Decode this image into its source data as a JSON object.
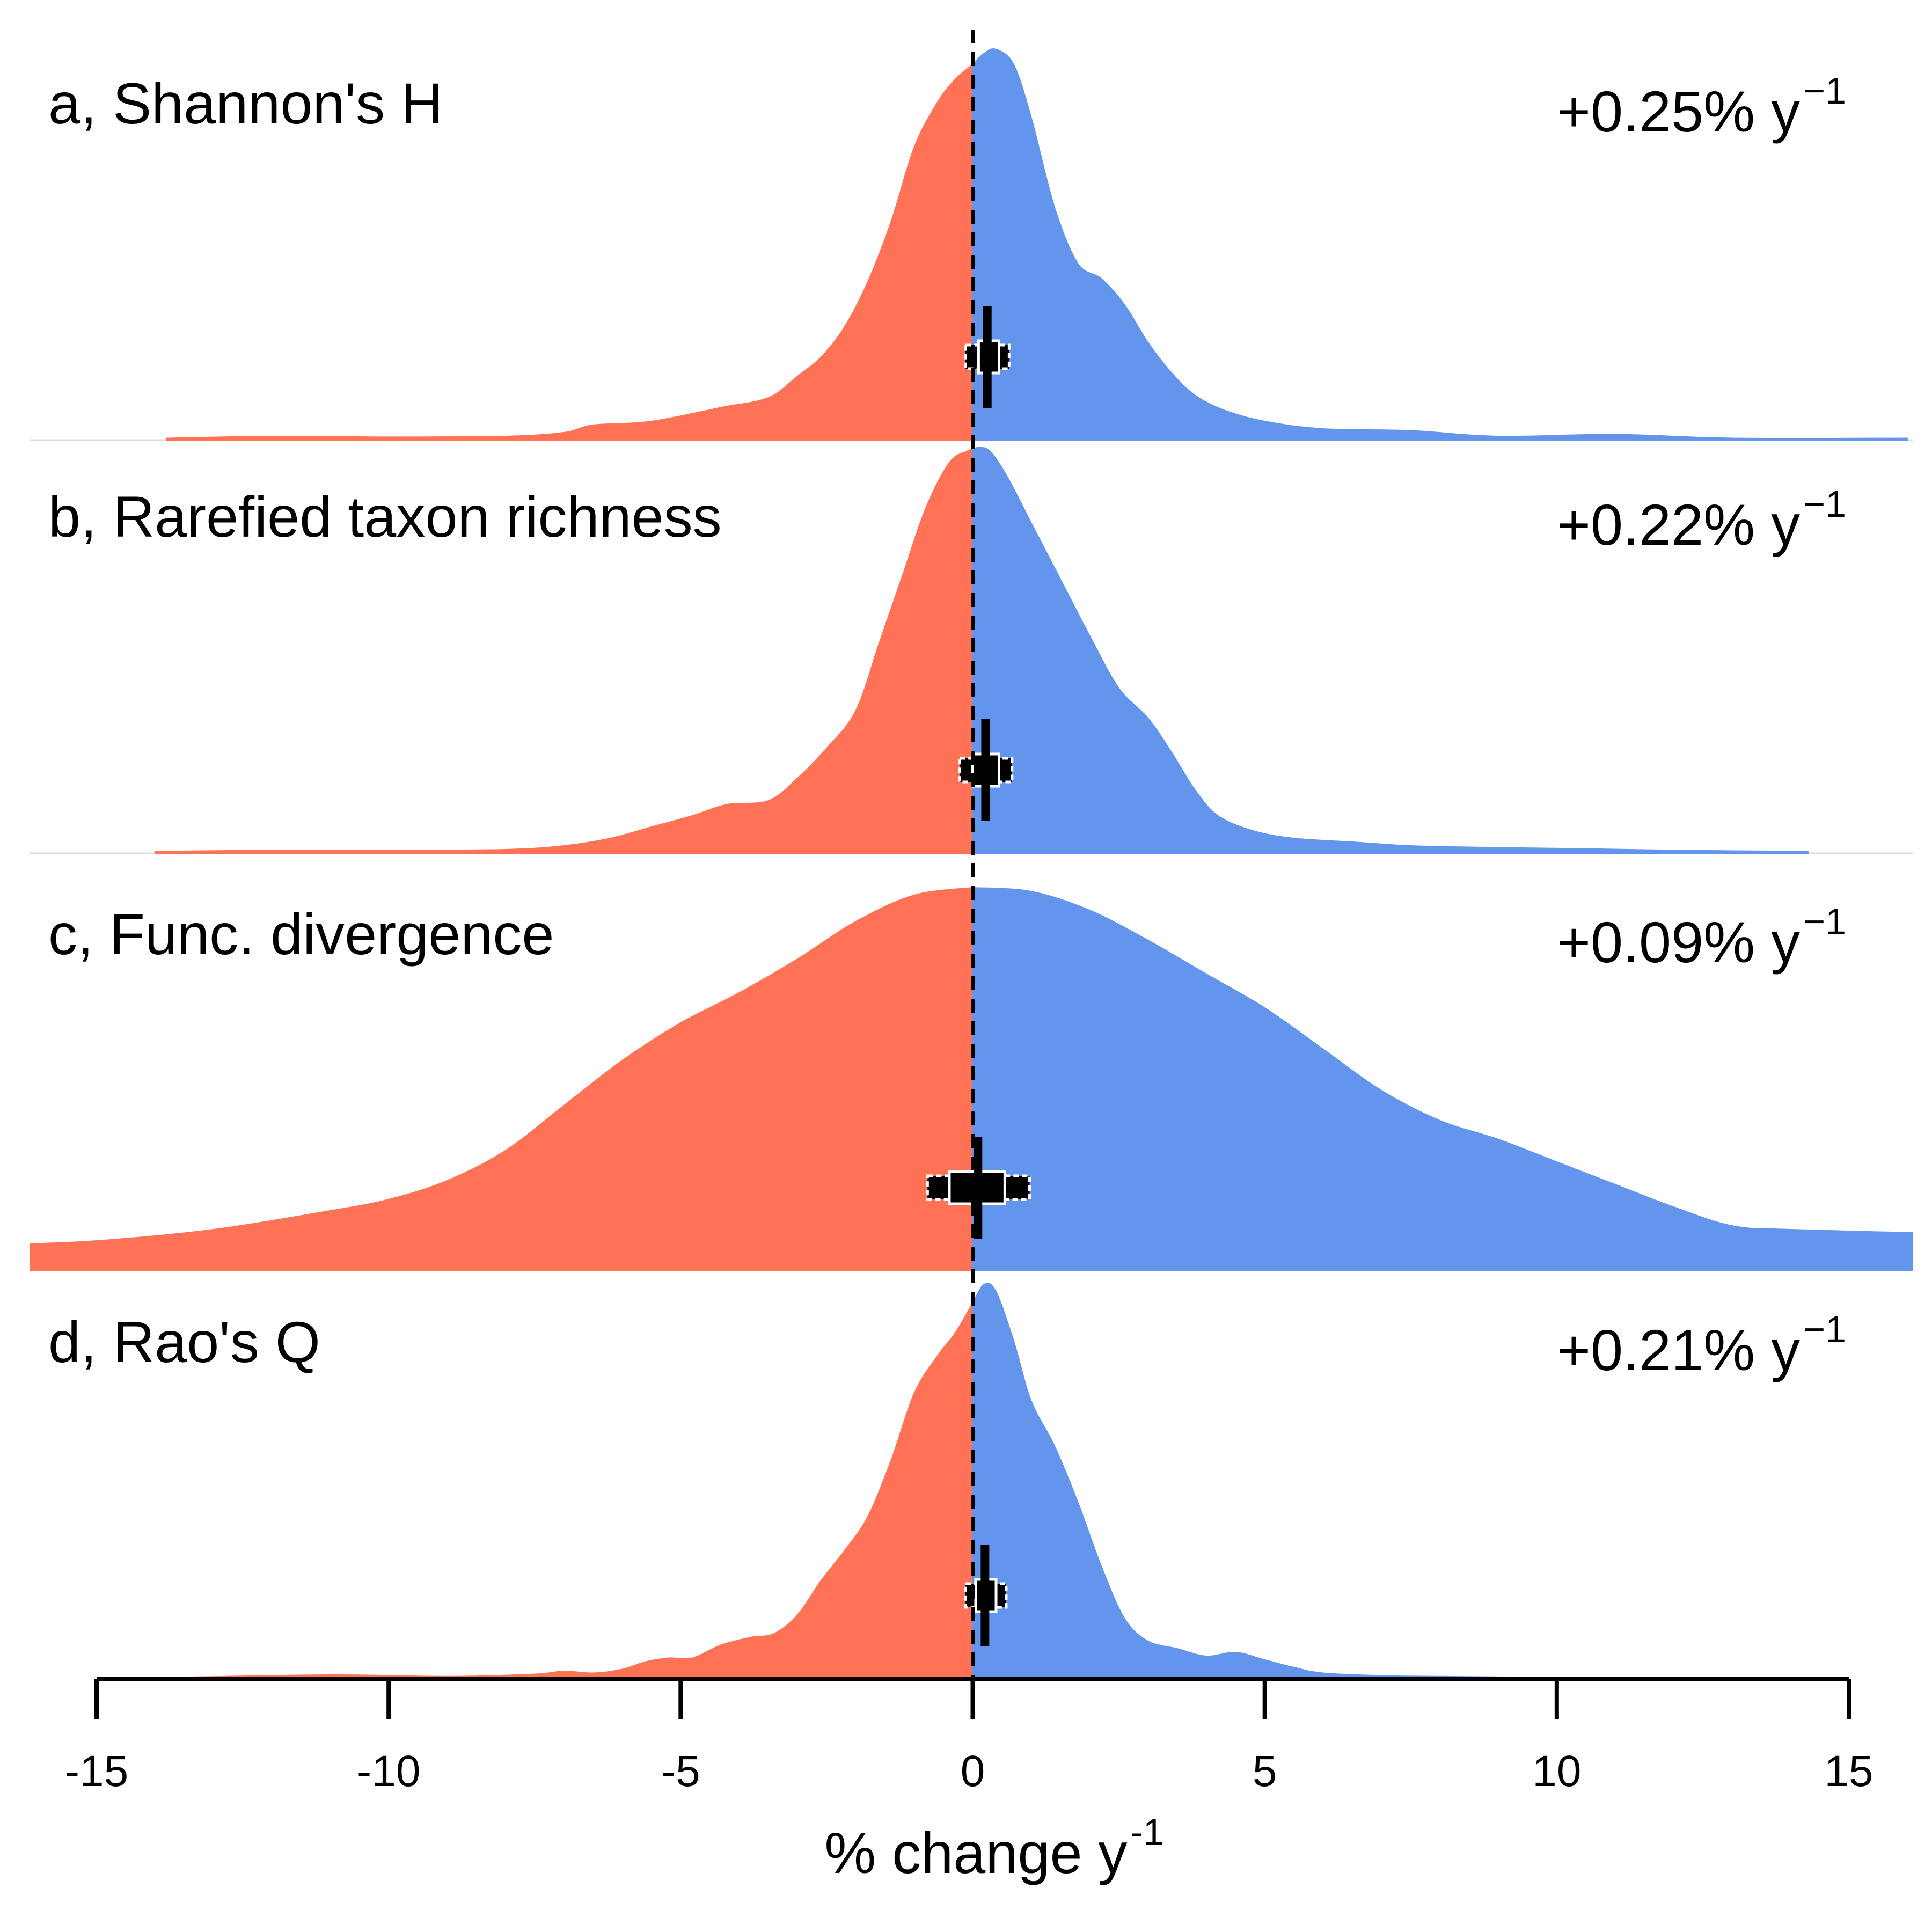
{
  "chart_data": {
    "type": "area",
    "xlim": [
      -15,
      15
    ],
    "xlabel": "% change y",
    "xlabel_superscript": "-1",
    "xticks": [
      -15,
      -10,
      -5,
      0,
      5,
      10,
      15
    ],
    "xtick_labels": [
      "-15",
      "-10",
      "-5",
      "0",
      "5",
      "10",
      "15"
    ],
    "reference_line_x": 0,
    "colors": {
      "negative": "#FF7256",
      "positive": "#6495ED",
      "baseline": "#dddddd",
      "axis": "#000000"
    },
    "panels": [
      {
        "label": "a, Shannon's H",
        "rate": "+0.25% y",
        "rate_superscript": "−1",
        "summary": {
          "median": 0.25,
          "inner": [
            0.1,
            0.45
          ],
          "outer": [
            -0.05,
            0.55
          ]
        },
        "density": {
          "x": [
            -13.8,
            -12,
            -10,
            -8,
            -7,
            -6.5,
            -5.5,
            -4.2,
            -3.8,
            -3.4,
            -3,
            -2.6,
            -2.2,
            -1.8,
            -1.4,
            -1.0,
            -0.6,
            -0.3,
            0,
            0.2,
            0.4,
            0.7,
            1.0,
            1.4,
            1.8,
            2.2,
            2.6,
            3.0,
            3.4,
            3.8,
            4.3,
            5.0,
            6.0,
            7.5,
            9.0,
            11.0,
            13.0,
            16.0
          ],
          "y": [
            0.005,
            0.01,
            0.008,
            0.01,
            0.02,
            0.04,
            0.05,
            0.09,
            0.1,
            0.12,
            0.17,
            0.22,
            0.3,
            0.42,
            0.58,
            0.78,
            0.9,
            0.96,
            1.0,
            1.03,
            1.04,
            1.0,
            0.86,
            0.62,
            0.47,
            0.43,
            0.36,
            0.26,
            0.18,
            0.12,
            0.08,
            0.05,
            0.03,
            0.025,
            0.01,
            0.015,
            0.005,
            0.005
          ]
        }
      },
      {
        "label": "b, Rarefied taxon richness",
        "rate": "+0.22% y",
        "rate_superscript": "−1",
        "summary": {
          "median": 0.22,
          "inner": [
            0.0,
            0.45
          ],
          "outer": [
            -0.15,
            0.6
          ]
        },
        "density": {
          "x": [
            -14.0,
            -12,
            -10,
            -8,
            -7,
            -6.2,
            -5.5,
            -4.8,
            -4.2,
            -3.5,
            -3.0,
            -2.5,
            -2.0,
            -1.6,
            -1.2,
            -0.8,
            -0.4,
            -0.1,
            0.1,
            0.3,
            0.6,
            1.0,
            1.5,
            2.0,
            2.5,
            3.0,
            3.4,
            3.8,
            4.2,
            4.8,
            5.5,
            6.5,
            7.5,
            9.0,
            10.5,
            12.0,
            14.3
          ],
          "y": [
            0.005,
            0.008,
            0.008,
            0.01,
            0.02,
            0.04,
            0.07,
            0.1,
            0.13,
            0.14,
            0.2,
            0.28,
            0.38,
            0.56,
            0.74,
            0.92,
            1.04,
            1.07,
            1.08,
            1.07,
            1.0,
            0.88,
            0.73,
            0.58,
            0.44,
            0.36,
            0.27,
            0.17,
            0.1,
            0.06,
            0.04,
            0.03,
            0.02,
            0.015,
            0.012,
            0.008,
            0.005
          ]
        }
      },
      {
        "label": "c, Func. divergence",
        "rate": "+0.09% y",
        "rate_superscript": "−1",
        "summary": {
          "median": 0.09,
          "inner": [
            -0.4,
            0.55
          ],
          "outer": [
            -0.7,
            0.9
          ]
        },
        "density": {
          "x": [
            -16.5,
            -15,
            -13,
            -11,
            -10,
            -9,
            -8,
            -7,
            -6,
            -5,
            -4,
            -3,
            -2,
            -1,
            0,
            1,
            2,
            3,
            4,
            5,
            6,
            7,
            8,
            9,
            10,
            11,
            12,
            13,
            14,
            16.5
          ],
          "y": [
            0.07,
            0.08,
            0.11,
            0.16,
            0.19,
            0.24,
            0.32,
            0.44,
            0.56,
            0.66,
            0.74,
            0.83,
            0.93,
            1.0,
            1.02,
            1.01,
            0.96,
            0.88,
            0.79,
            0.7,
            0.59,
            0.48,
            0.4,
            0.35,
            0.29,
            0.23,
            0.17,
            0.12,
            0.11,
            0.1
          ]
        }
      },
      {
        "label": "d, Rao's Q",
        "rate": "+0.21% y",
        "rate_superscript": "−1",
        "summary": {
          "median": 0.21,
          "inner": [
            0.05,
            0.4
          ],
          "outer": [
            -0.05,
            0.5
          ]
        },
        "density": {
          "x": [
            -13.5,
            -11,
            -9,
            -7.5,
            -7,
            -6.5,
            -6.0,
            -5.6,
            -5.2,
            -4.8,
            -4.3,
            -3.8,
            -3.4,
            -3.0,
            -2.6,
            -2.2,
            -1.8,
            -1.4,
            -1.0,
            -0.6,
            -0.3,
            0,
            0.2,
            0.4,
            0.7,
            1.0,
            1.4,
            1.8,
            2.2,
            2.6,
            3.0,
            3.5,
            4.0,
            4.5,
            5.0,
            5.5,
            6.0,
            7.0,
            8.0,
            10.0,
            13.0
          ],
          "y": [
            0.004,
            0.01,
            0.006,
            0.012,
            0.02,
            0.015,
            0.025,
            0.045,
            0.055,
            0.055,
            0.09,
            0.11,
            0.12,
            0.17,
            0.26,
            0.34,
            0.43,
            0.58,
            0.76,
            0.86,
            0.92,
            1.0,
            1.05,
            1.03,
            0.9,
            0.74,
            0.62,
            0.47,
            0.3,
            0.16,
            0.1,
            0.08,
            0.06,
            0.07,
            0.05,
            0.03,
            0.015,
            0.008,
            0.006,
            0.003,
            0.002
          ]
        }
      }
    ]
  }
}
